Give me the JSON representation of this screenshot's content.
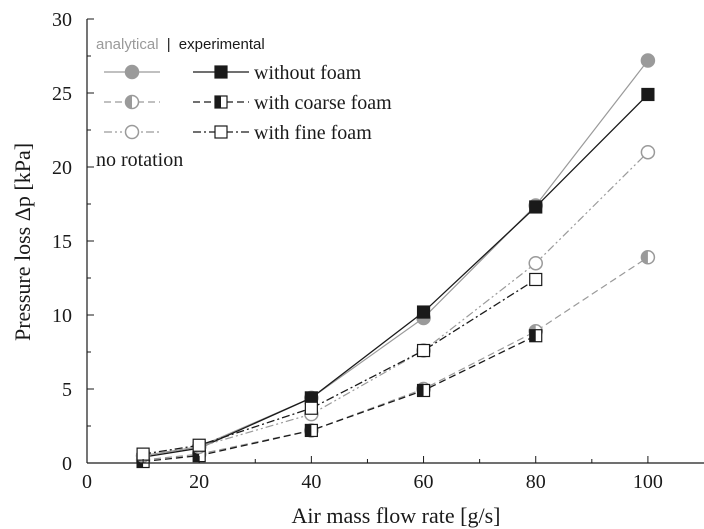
{
  "chart_data": {
    "type": "line",
    "xlabel": "Air mass flow rate [g/s]",
    "ylabel": "Pressure loss Δp [kPa]",
    "xlim": [
      0,
      110
    ],
    "ylim": [
      0,
      30
    ],
    "xticks": [
      0,
      20,
      40,
      60,
      80,
      100
    ],
    "yticks": [
      0,
      5,
      10,
      15,
      20,
      25,
      30
    ],
    "grid": false,
    "legend_placement": "top-left",
    "legend_header": {
      "analytical": "analytical",
      "separator": "|",
      "experimental": "experimental"
    },
    "annotation": "no rotation",
    "colors": {
      "analytical": "#9a9a9a",
      "experimental": "#1a1a1a"
    },
    "series": [
      {
        "name": "without foam",
        "method": "analytical",
        "line": "solid",
        "marker": "circle-filled",
        "x": [
          10,
          20,
          40,
          60,
          80,
          100
        ],
        "y": [
          0.5,
          1.1,
          4.4,
          9.8,
          17.4,
          27.2
        ]
      },
      {
        "name": "without foam",
        "method": "experimental",
        "line": "solid",
        "marker": "square-filled",
        "x": [
          10,
          20,
          40,
          60,
          80,
          100
        ],
        "y": [
          0.4,
          1.0,
          4.4,
          10.2,
          17.3,
          24.9
        ]
      },
      {
        "name": "with coarse foam",
        "method": "analytical",
        "line": "dashed",
        "marker": "circle-half",
        "x": [
          10,
          20,
          40,
          60,
          80,
          100
        ],
        "y": [
          0.2,
          0.6,
          2.2,
          5.0,
          8.9,
          13.9
        ]
      },
      {
        "name": "with coarse foam",
        "method": "experimental",
        "line": "dashed",
        "marker": "square-half",
        "x": [
          10,
          20,
          40,
          60,
          80
        ],
        "y": [
          0.1,
          0.5,
          2.2,
          4.9,
          8.6
        ]
      },
      {
        "name": "with fine foam",
        "method": "analytical",
        "line": "dashdotdot",
        "marker": "circle-open",
        "x": [
          10,
          20,
          40,
          60,
          80,
          100
        ],
        "y": [
          0.5,
          1.1,
          3.3,
          7.6,
          13.5,
          21.0
        ]
      },
      {
        "name": "with fine foam",
        "method": "experimental",
        "line": "dashdot",
        "marker": "square-open",
        "x": [
          10,
          20,
          40,
          60,
          80
        ],
        "y": [
          0.6,
          1.2,
          3.7,
          7.6,
          12.4
        ]
      }
    ]
  }
}
